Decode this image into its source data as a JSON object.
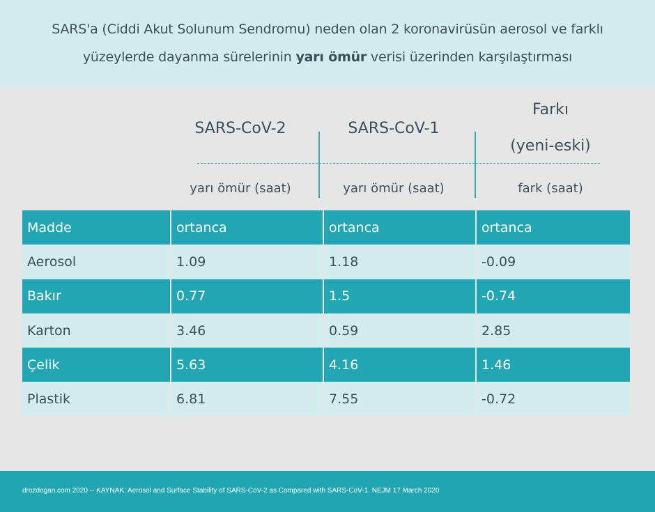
{
  "title": {
    "line1": "SARS'a (Ciddi Akut Solunum Sendromu) neden olan 2 koronavirüsün aerosol ve farklı",
    "line2_before": "yüzeylerde dayanma sürelerinin ",
    "line2_bold": "yarı ömür",
    "line2_after": " verisi üzerinden  karşılaştırması"
  },
  "columns": {
    "cov2": {
      "title": "SARS-CoV-2",
      "sub": "yarı ömür (saat)"
    },
    "cov1": {
      "title": "SARS-CoV-1",
      "sub": "yarı ömür (saat)"
    },
    "diff": {
      "title_line1": "Farkı",
      "title_line2": "(yeni-eski)",
      "sub": "fark (saat)"
    }
  },
  "chart_data": {
    "type": "table",
    "headers": [
      "Madde",
      "ortanca",
      "ortanca",
      "ortanca"
    ],
    "rows": [
      [
        "Aerosol",
        "1.09",
        "1.18",
        "-0.09"
      ],
      [
        "Bakır",
        "0.77",
        "1.5",
        "-0.74"
      ],
      [
        "Karton",
        "3.46",
        "0.59",
        "2.85"
      ],
      [
        "Çelik",
        "5.63",
        "4.16",
        "1.46"
      ],
      [
        "Plastik",
        "6.81",
        "7.55",
        "-0.72"
      ]
    ]
  },
  "footer": {
    "text": "drozdogan.com 2020 -- KAYNAK: Aerosol and Surface Stability of SARS-CoV-2 as Compared with SARS-CoV-1. NEJM 17 March 2020"
  },
  "colors": {
    "header_bg": "#d3ecee",
    "accent": "#22a6b4",
    "background": "#e6e6e6"
  }
}
